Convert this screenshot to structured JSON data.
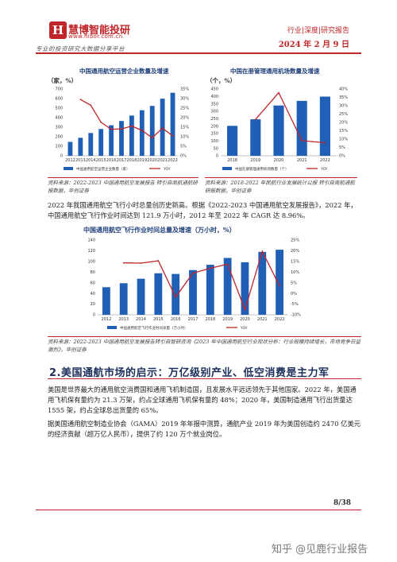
{
  "header": {
    "logo_glyph": "H",
    "brand": "慧博智能投研",
    "url": "www.hibor.com.cn",
    "slogan": "专业的投资研究大数据分享平台",
    "category": "行业|深度|研究报告",
    "date": "2024 年 2 月 9 日"
  },
  "chart1": {
    "title": "中国通用航空运营企业数量及增速",
    "unit": "（家，%）",
    "legend_bar": "中国通用航空运营企业数量（家）",
    "legend_line": "YOY",
    "source": "资料来源：2022-2023 中国通用航空发展报告 转引自南航通航研报数据，华创证券"
  },
  "chart2": {
    "title": "中国在册管理通用机场数量及增速",
    "unit": "（个，%）",
    "legend_bar": "中国在册管理通用机场数量（个）",
    "legend_line": "YOY",
    "source": "资料来源：2018-2022 年民航行业发展统计公报 转引自南航通航研报数据，华创证券"
  },
  "para1": "2022 年我国通用航空飞行小时总量创历史新高。根据《2022-2023 中国通用航空发展报告》，2022 年，中国通用航空飞行作业时间达到 121.9 万小时，2012 年至 2022 年 CAGR 达 8.96%。",
  "chart3": {
    "title": "中国通用航空飞行作业时间总量及增速（万小时，%）",
    "legend_bar": "中国通用航空飞行作业时间总量（万小时）",
    "legend_line": "YOY",
    "source": "资料来源：2022-2023 中国通用航空发展报告转引自智研咨询《2023 年中国通用航空行业现状分析：行业规模持续增长，市场竞争日益激烈》，华创证券"
  },
  "section_title": "2.美国通航市场的启示：万亿级别产业、低空消费是主力军",
  "para2": "美国是世界最大的通用航空消费国和通用飞机制造国，且发展水平远远领先于其他国家。2022 年，美国通用飞机保有量约为 21.3 万架，约占全球通用飞机保有量的 48%；2020 年，美国制造通用飞行出货量达 1555 架，约占全球总出货量的 65%。",
  "para3": "据美国通用航空制造业协会（GAMA）2019 年年报中测算，通航产业 2019 年为美国创造约 2470 亿美元的经济贡献（超万亿人民币），提供了约 120 万个就业岗位。",
  "page_number": "8/38",
  "watermark": "知乎 @见鹿行业报告",
  "colors": {
    "bar": "#1f5fb5",
    "line": "#c0252a",
    "accent": "#c0252a",
    "navy": "#1a2e5a"
  },
  "chart_data": [
    {
      "type": "bar",
      "categories": [
        "2012",
        "2013",
        "2014",
        "2015",
        "2016",
        "2017",
        "2018",
        "2019",
        "2020",
        "2021",
        "2022"
      ],
      "series": [
        {
          "name": "中国通用航空运营企业数量（家）",
          "values": [
            146,
            189,
            239,
            281,
            320,
            365,
            422,
            478,
            523,
            599,
            661
          ],
          "axis": "left"
        },
        {
          "name": "YOY",
          "values": [
            null,
            29.5,
            26.5,
            17.6,
            13.9,
            14.1,
            15.6,
            13.3,
            9.4,
            14.5,
            10.4
          ],
          "axis": "right",
          "type": "line"
        }
      ],
      "yticks": [
        "0",
        "100",
        "200",
        "300",
        "400",
        "500",
        "600",
        "700"
      ],
      "y2ticks": [
        "0%",
        "5%",
        "10%",
        "15%",
        "20%",
        "25%",
        "30%",
        "35%"
      ],
      "ylim": [
        0,
        700
      ],
      "y2lim": [
        0,
        35
      ]
    },
    {
      "type": "bar",
      "categories": [
        "2018",
        "2019",
        "2020",
        "2021",
        "2022"
      ],
      "series": [
        {
          "name": "中国在册管理通用机场数量（个）",
          "values": [
            202,
            246,
            339,
            370,
            399
          ],
          "axis": "left"
        },
        {
          "name": "YOY",
          "values": [
            null,
            21.8,
            37.8,
            9.1,
            7.8
          ],
          "axis": "right",
          "type": "line"
        }
      ],
      "yticks": [
        "0",
        "50",
        "100",
        "150",
        "200",
        "250",
        "300",
        "350",
        "400",
        "450"
      ],
      "y2ticks": [
        "0%",
        "5%",
        "10%",
        "15%",
        "20%",
        "25%",
        "30%",
        "35%",
        "40%"
      ],
      "ylim": [
        0,
        450
      ],
      "y2lim": [
        0,
        40
      ]
    },
    {
      "type": "bar",
      "categories": [
        "2012",
        "2013",
        "2014",
        "2015",
        "2016",
        "2017",
        "2018",
        "2019",
        "2020",
        "2021",
        "2022"
      ],
      "series": [
        {
          "name": "中国通用航空飞行作业时间总量（万小时）",
          "values": [
            51.7,
            59.1,
            67.5,
            77.8,
            76.5,
            83.8,
            93.7,
            106.5,
            98.4,
            117.8,
            121.9
          ],
          "axis": "left"
        },
        {
          "name": "YOY",
          "values": [
            null,
            14.3,
            14.2,
            15.3,
            -1.7,
            9.5,
            11.8,
            13.7,
            -7.6,
            19.7,
            3.5
          ],
          "axis": "right",
          "type": "line"
        }
      ],
      "yticks": [
        "0",
        "20",
        "40",
        "60",
        "80",
        "100",
        "120",
        "140"
      ],
      "y2ticks": [
        "-10%",
        "-5%",
        "0%",
        "5%",
        "10%",
        "15%",
        "20%",
        "25%"
      ],
      "ylim": [
        0,
        140
      ],
      "y2lim": [
        -10,
        25
      ]
    }
  ]
}
